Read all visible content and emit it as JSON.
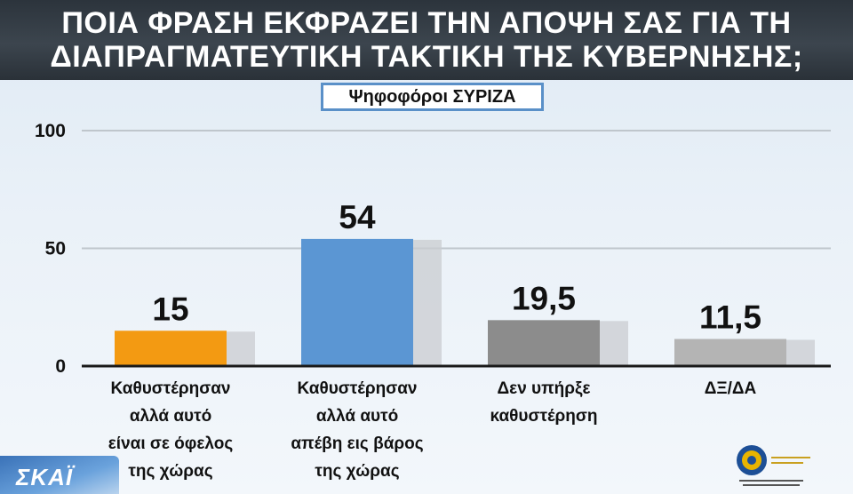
{
  "header": {
    "title_line1": "ΠΟΙΑ ΦΡΑΣΗ ΕΚΦΡΑΖΕΙ ΤΗΝ ΑΠΟΨΗ ΣΑΣ ΓΙΑ ΤΗ",
    "title_line2": "ΔΙΑΠΡΑΓΜΑΤΕΥΤΙΚΗ ΤΑΚΤΙΚΗ ΤΗΣ ΚΥΒΕΡΝΗΣΗΣ;",
    "subtitle": "Ψηφοφόροι ΣΥΡΙΖΑ"
  },
  "logos": {
    "left_text": "ΣΚΑΪ"
  },
  "colors": {
    "orange": "#f39a12",
    "blue": "#5b96d3",
    "gray": "#8c8c8c",
    "lightgray": "#b4b4b4"
  },
  "chart_data": {
    "type": "bar",
    "title": "ΠΟΙΑ ΦΡΑΣΗ ΕΚΦΡΑΖΕΙ ΤΗΝ ΑΠΟΨΗ ΣΑΣ ΓΙΑ ΤΗ ΔΙΑΠΡΑΓΜΑΤΕΥΤΙΚΗ ΤΑΚΤΙΚΗ ΤΗΣ ΚΥΒΕΡΝΗΣΗΣ;",
    "subtitle": "Ψηφοφόροι ΣΥΡΙΖΑ",
    "categories": [
      [
        "Καθυστέρησαν",
        "αλλά αυτό",
        "είναι σε όφελος",
        "της χώρας"
      ],
      [
        "Καθυστέρησαν",
        "αλλά αυτό",
        "απέβη εις βάρος",
        "της χώρας"
      ],
      [
        "Δεν υπήρξε",
        "καθυστέρηση"
      ],
      [
        "ΔΞ/ΔΑ"
      ]
    ],
    "values": [
      15,
      54,
      19.5,
      11.5
    ],
    "value_labels": [
      "15",
      "54",
      "19,5",
      "11,5"
    ],
    "bar_colors": [
      "#f39a12",
      "#5b96d3",
      "#8c8c8c",
      "#b4b4b4"
    ],
    "yticks": [
      0,
      50,
      100
    ],
    "ylim": [
      0,
      100
    ],
    "xlabel": "",
    "ylabel": "",
    "grid": true
  }
}
